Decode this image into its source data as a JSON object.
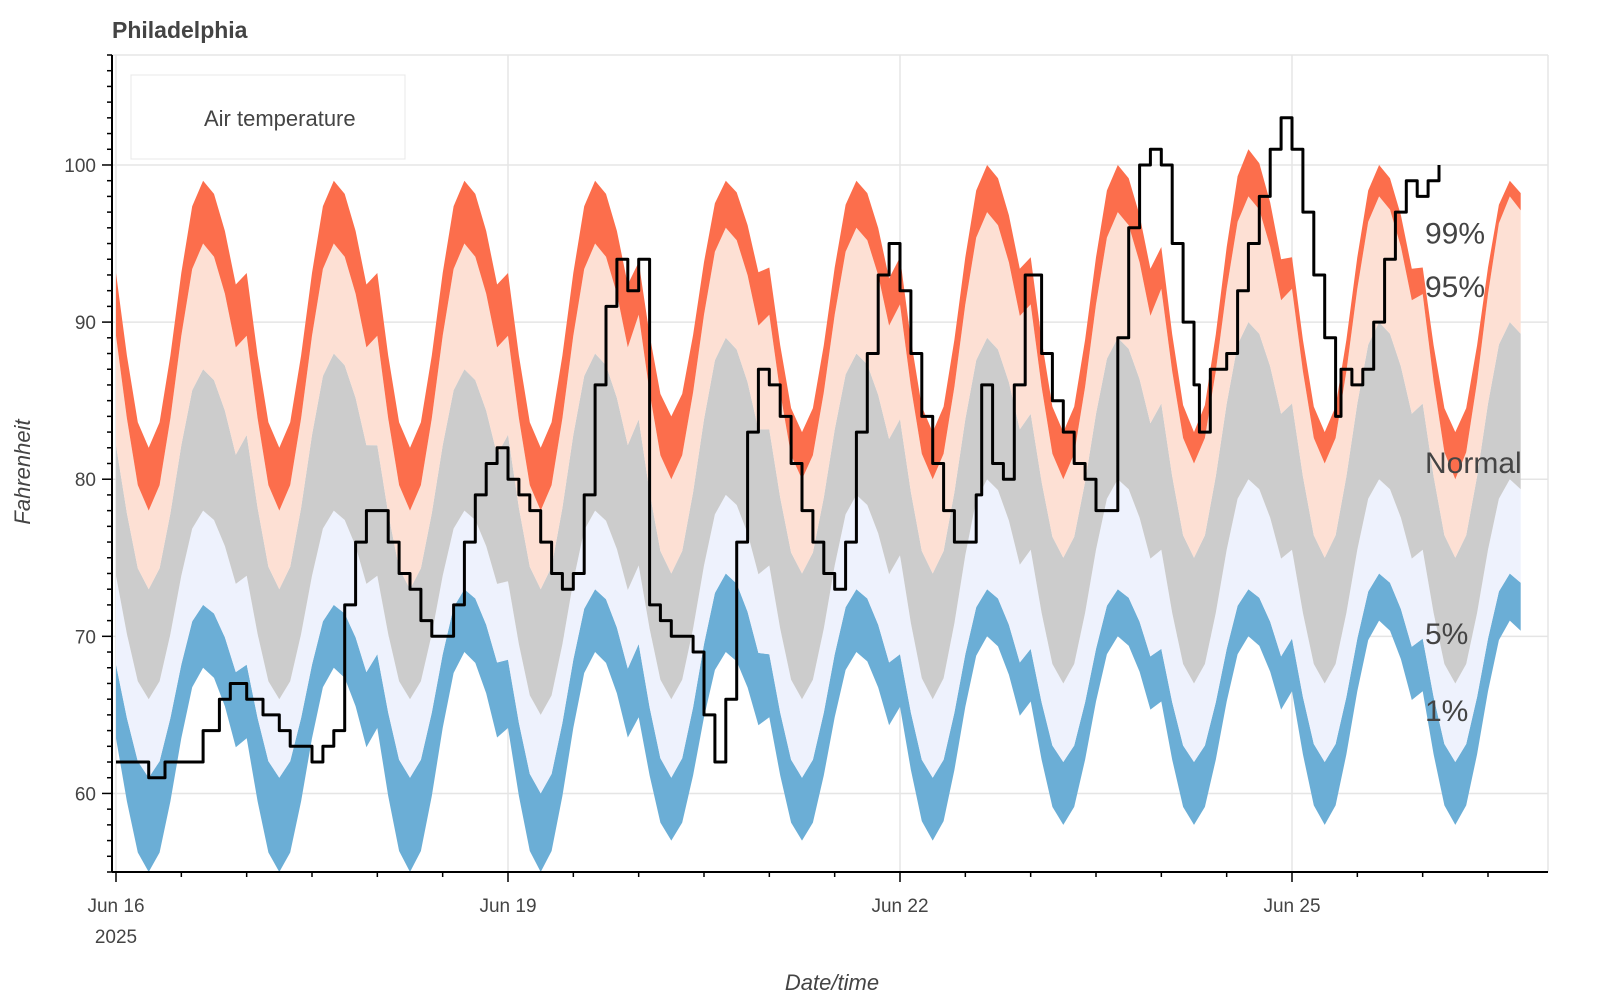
{
  "chart_data": {
    "type": "area",
    "title": "Philadelphia",
    "xlabel": "Date/time",
    "ylabel": "Fahrenheit",
    "x_range": [
      "2025-06-16T00:00",
      "2025-06-26T18:00"
    ],
    "ylim": [
      55,
      107
    ],
    "grid": true,
    "legend_position": "top-left",
    "legend": [
      "Air temperature"
    ],
    "x_ticks": [
      {
        "date": "2025-06-16",
        "label": "Jun 16",
        "sublabel": "2025"
      },
      {
        "date": "2025-06-19",
        "label": "Jun 19",
        "sublabel": ""
      },
      {
        "date": "2025-06-22",
        "label": "Jun 22",
        "sublabel": ""
      },
      {
        "date": "2025-06-25",
        "label": "Jun 25",
        "sublabel": ""
      }
    ],
    "y_ticks": [
      60,
      70,
      80,
      90,
      100
    ],
    "band_labels": [
      {
        "text": "99%",
        "y": 95.7
      },
      {
        "text": "95%",
        "y": 92.3
      },
      {
        "text": "Normal",
        "y": 81.1
      },
      {
        "text": "5%",
        "y": 70.2
      },
      {
        "text": "1%",
        "y": 65.3
      }
    ],
    "colors": {
      "p99_band": "#fc6e4c",
      "p95_band": "#fde0d4",
      "normal_band": "#cccccc",
      "p5_band": "#eef2fd",
      "p1_band": "#6baed6",
      "temperature_line": "#000000",
      "grid": "#e5e5e5"
    },
    "daily_climatology": [
      {
        "date": "2025-06-16",
        "min": [
          55,
          61,
          66,
          73,
          78,
          82
        ],
        "max": [
          68,
          72,
          78,
          87,
          95,
          99
        ]
      },
      {
        "date": "2025-06-17",
        "min": [
          55,
          61,
          66,
          73,
          78,
          82
        ],
        "max": [
          68,
          72,
          78,
          88,
          95,
          99
        ]
      },
      {
        "date": "2025-06-18",
        "min": [
          55,
          61,
          66,
          73,
          78,
          82
        ],
        "max": [
          69,
          73,
          78,
          87,
          95,
          99
        ]
      },
      {
        "date": "2025-06-19",
        "min": [
          55,
          60,
          65,
          73,
          78,
          82
        ],
        "max": [
          69,
          73,
          78,
          88,
          95,
          99
        ]
      },
      {
        "date": "2025-06-20",
        "min": [
          57,
          61,
          66,
          74,
          80,
          84
        ],
        "max": [
          69,
          74,
          79,
          89,
          96,
          99
        ]
      },
      {
        "date": "2025-06-21",
        "min": [
          57,
          61,
          66,
          74,
          80,
          83
        ],
        "max": [
          69,
          73,
          79,
          88,
          96,
          99
        ]
      },
      {
        "date": "2025-06-22",
        "min": [
          57,
          61,
          66,
          74,
          80,
          83
        ],
        "max": [
          70,
          73,
          80,
          89,
          97,
          100
        ]
      },
      {
        "date": "2025-06-23",
        "min": [
          58,
          62,
          67,
          75,
          80,
          83
        ],
        "max": [
          70,
          73,
          80,
          89,
          97,
          100
        ]
      },
      {
        "date": "2025-06-24",
        "min": [
          58,
          62,
          67,
          75,
          81,
          83
        ],
        "max": [
          70,
          73,
          80,
          90,
          98,
          101
        ]
      },
      {
        "date": "2025-06-25",
        "min": [
          58,
          62,
          67,
          75,
          81,
          83
        ],
        "max": [
          71,
          74,
          80,
          90,
          98,
          100
        ]
      },
      {
        "date": "2025-06-26",
        "min": [
          58,
          62,
          67,
          75,
          80,
          83
        ],
        "max": [
          71,
          74,
          80,
          90,
          98,
          99
        ]
      }
    ],
    "series": [
      {
        "name": "Air temperature",
        "points": [
          [
            "2025-06-16T00:00",
            62
          ],
          [
            "2025-06-16T06:00",
            61
          ],
          [
            "2025-06-16T09:00",
            62
          ],
          [
            "2025-06-16T12:00",
            62
          ],
          [
            "2025-06-16T16:00",
            64
          ],
          [
            "2025-06-16T19:00",
            66
          ],
          [
            "2025-06-16T21:00",
            67
          ],
          [
            "2025-06-17T00:00",
            66
          ],
          [
            "2025-06-17T03:00",
            65
          ],
          [
            "2025-06-17T06:00",
            64
          ],
          [
            "2025-06-17T08:00",
            63
          ],
          [
            "2025-06-17T11:00",
            63
          ],
          [
            "2025-06-17T12:00",
            62
          ],
          [
            "2025-06-17T14:00",
            63
          ],
          [
            "2025-06-17T16:00",
            64
          ],
          [
            "2025-06-17T18:00",
            72
          ],
          [
            "2025-06-17T20:00",
            76
          ],
          [
            "2025-06-17T22:00",
            78
          ],
          [
            "2025-06-18T00:00",
            78
          ],
          [
            "2025-06-18T02:00",
            76
          ],
          [
            "2025-06-18T04:00",
            74
          ],
          [
            "2025-06-18T06:00",
            73
          ],
          [
            "2025-06-18T08:00",
            71
          ],
          [
            "2025-06-18T10:00",
            70
          ],
          [
            "2025-06-18T12:00",
            70
          ],
          [
            "2025-06-18T14:00",
            72
          ],
          [
            "2025-06-18T16:00",
            76
          ],
          [
            "2025-06-18T18:00",
            79
          ],
          [
            "2025-06-18T20:00",
            81
          ],
          [
            "2025-06-18T22:00",
            82
          ],
          [
            "2025-06-19T00:00",
            80
          ],
          [
            "2025-06-19T02:00",
            79
          ],
          [
            "2025-06-19T04:00",
            78
          ],
          [
            "2025-06-19T06:00",
            76
          ],
          [
            "2025-06-19T08:00",
            74
          ],
          [
            "2025-06-19T10:00",
            73
          ],
          [
            "2025-06-19T12:00",
            74
          ],
          [
            "2025-06-19T14:00",
            79
          ],
          [
            "2025-06-19T16:00",
            86
          ],
          [
            "2025-06-19T18:00",
            91
          ],
          [
            "2025-06-19T20:00",
            94
          ],
          [
            "2025-06-19T22:00",
            92
          ],
          [
            "2025-06-20T00:00",
            94
          ],
          [
            "2025-06-20T02:00",
            72
          ],
          [
            "2025-06-20T04:00",
            71
          ],
          [
            "2025-06-20T06:00",
            70
          ],
          [
            "2025-06-20T08:00",
            70
          ],
          [
            "2025-06-20T10:00",
            69
          ],
          [
            "2025-06-20T12:00",
            65
          ],
          [
            "2025-06-20T14:00",
            62
          ],
          [
            "2025-06-20T16:00",
            66
          ],
          [
            "2025-06-20T18:00",
            76
          ],
          [
            "2025-06-20T20:00",
            83
          ],
          [
            "2025-06-20T22:00",
            87
          ],
          [
            "2025-06-21T00:00",
            86
          ],
          [
            "2025-06-21T02:00",
            84
          ],
          [
            "2025-06-21T04:00",
            81
          ],
          [
            "2025-06-21T06:00",
            78
          ],
          [
            "2025-06-21T08:00",
            76
          ],
          [
            "2025-06-21T10:00",
            74
          ],
          [
            "2025-06-21T12:00",
            73
          ],
          [
            "2025-06-21T14:00",
            76
          ],
          [
            "2025-06-21T16:00",
            83
          ],
          [
            "2025-06-21T18:00",
            88
          ],
          [
            "2025-06-21T20:00",
            93
          ],
          [
            "2025-06-21T22:00",
            95
          ],
          [
            "2025-06-22T00:00",
            92
          ],
          [
            "2025-06-22T02:00",
            88
          ],
          [
            "2025-06-22T04:00",
            84
          ],
          [
            "2025-06-22T06:00",
            81
          ],
          [
            "2025-06-22T08:00",
            78
          ],
          [
            "2025-06-22T10:00",
            76
          ],
          [
            "2025-06-22T12:00",
            76
          ],
          [
            "2025-06-22T14:00",
            79
          ],
          [
            "2025-06-22T15:00",
            86
          ],
          [
            "2025-06-22T17:00",
            81
          ],
          [
            "2025-06-22T19:00",
            80
          ],
          [
            "2025-06-22T21:00",
            86
          ],
          [
            "2025-06-22T23:00",
            93
          ],
          [
            "2025-06-23T02:00",
            88
          ],
          [
            "2025-06-23T04:00",
            85
          ],
          [
            "2025-06-23T06:00",
            83
          ],
          [
            "2025-06-23T08:00",
            81
          ],
          [
            "2025-06-23T10:00",
            80
          ],
          [
            "2025-06-23T12:00",
            78
          ],
          [
            "2025-06-23T14:00",
            78
          ],
          [
            "2025-06-23T16:00",
            89
          ],
          [
            "2025-06-23T18:00",
            96
          ],
          [
            "2025-06-23T20:00",
            100
          ],
          [
            "2025-06-23T22:00",
            101
          ],
          [
            "2025-06-24T00:00",
            100
          ],
          [
            "2025-06-24T02:00",
            95
          ],
          [
            "2025-06-24T04:00",
            90
          ],
          [
            "2025-06-24T06:00",
            86
          ],
          [
            "2025-06-24T07:00",
            83
          ],
          [
            "2025-06-24T09:00",
            87
          ],
          [
            "2025-06-24T12:00",
            88
          ],
          [
            "2025-06-24T14:00",
            92
          ],
          [
            "2025-06-24T16:00",
            95
          ],
          [
            "2025-06-24T18:00",
            98
          ],
          [
            "2025-06-24T20:00",
            101
          ],
          [
            "2025-06-24T22:00",
            103
          ],
          [
            "2025-06-25T00:00",
            101
          ],
          [
            "2025-06-25T02:00",
            97
          ],
          [
            "2025-06-25T04:00",
            93
          ],
          [
            "2025-06-25T06:00",
            89
          ],
          [
            "2025-06-25T08:00",
            84
          ],
          [
            "2025-06-25T09:00",
            87
          ],
          [
            "2025-06-25T11:00",
            86
          ],
          [
            "2025-06-25T13:00",
            87
          ],
          [
            "2025-06-25T15:00",
            90
          ],
          [
            "2025-06-25T17:00",
            94
          ],
          [
            "2025-06-25T19:00",
            97
          ],
          [
            "2025-06-25T21:00",
            99
          ],
          [
            "2025-06-25T23:00",
            98
          ],
          [
            "2025-06-26T01:00",
            99
          ],
          [
            "2025-06-26T03:00",
            100
          ]
        ]
      }
    ]
  }
}
